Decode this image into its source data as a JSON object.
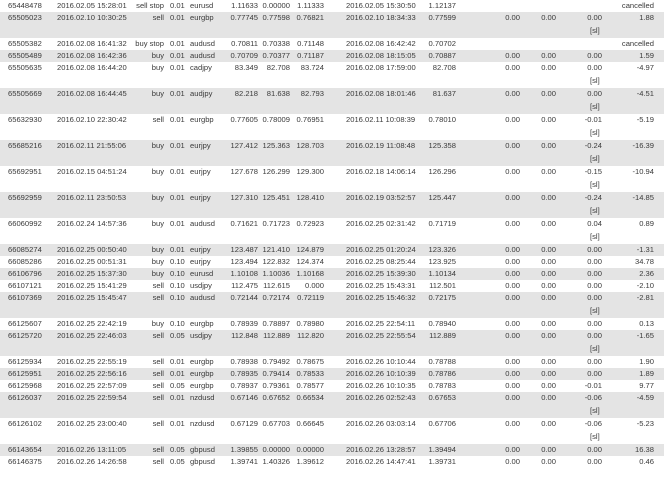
{
  "statement": {
    "colors": {
      "row_alt": "#e4e4e4",
      "row": "#ffffff",
      "text": "#3a3a3a"
    },
    "rows": [
      {
        "order": "65448478",
        "open_time": "2016.02.05 15:28:01",
        "type": "sell stop",
        "size": "0.01",
        "symbol": "eurusd",
        "price": "1.11633",
        "sl": "0.00000",
        "tp": "1.11333",
        "close_time": "2016.02.05 15:30:50",
        "close_price": "1.12137",
        "commission": "",
        "taxes": "",
        "swap": "",
        "profit": "cancelled",
        "note": ""
      },
      {
        "order": "65505023",
        "open_time": "2016.02.10 10:30:25",
        "type": "sell",
        "size": "0.01",
        "symbol": "eurgbp",
        "price": "0.77745",
        "sl": "0.77598",
        "tp": "0.76821",
        "close_time": "2016.02.10 18:34:33",
        "close_price": "0.77599",
        "commission": "0.00",
        "taxes": "0.00",
        "swap": "0.00",
        "profit": "1.88",
        "note": "[sl]"
      },
      {
        "order": "65505382",
        "open_time": "2016.02.08 16:41:32",
        "type": "buy stop",
        "size": "0.01",
        "symbol": "audusd",
        "price": "0.70811",
        "sl": "0.70338",
        "tp": "0.71148",
        "close_time": "2016.02.08 16:42:42",
        "close_price": "0.70702",
        "commission": "",
        "taxes": "",
        "swap": "",
        "profit": "cancelled",
        "note": ""
      },
      {
        "order": "65505489",
        "open_time": "2016.02.08 16:42:36",
        "type": "buy",
        "size": "0.01",
        "symbol": "audusd",
        "price": "0.70709",
        "sl": "0.70377",
        "tp": "0.71187",
        "close_time": "2016.02.08 18:15:05",
        "close_price": "0.70887",
        "commission": "0.00",
        "taxes": "0.00",
        "swap": "0.00",
        "profit": "1.59",
        "note": ""
      },
      {
        "order": "65505635",
        "open_time": "2016.02.08 16:44:20",
        "type": "buy",
        "size": "0.01",
        "symbol": "cadjpy",
        "price": "83.349",
        "sl": "82.708",
        "tp": "83.724",
        "close_time": "2016.02.08 17:59:00",
        "close_price": "82.708",
        "commission": "0.00",
        "taxes": "0.00",
        "swap": "0.00",
        "profit": "-4.97",
        "note": "[sl]"
      },
      {
        "order": "65505669",
        "open_time": "2016.02.08 16:44:45",
        "type": "buy",
        "size": "0.01",
        "symbol": "audjpy",
        "price": "82.218",
        "sl": "81.638",
        "tp": "82.793",
        "close_time": "2016.02.08 18:01:46",
        "close_price": "81.637",
        "commission": "0.00",
        "taxes": "0.00",
        "swap": "0.00",
        "profit": "-4.51",
        "note": "[sl]"
      },
      {
        "order": "65632930",
        "open_time": "2016.02.10 22:30:42",
        "type": "sell",
        "size": "0.01",
        "symbol": "eurgbp",
        "price": "0.77605",
        "sl": "0.78009",
        "tp": "0.76951",
        "close_time": "2016.02.11 10:08:39",
        "close_price": "0.78010",
        "commission": "0.00",
        "taxes": "0.00",
        "swap": "-0.01",
        "profit": "-5.19",
        "note": "[sl]"
      },
      {
        "order": "65685216",
        "open_time": "2016.02.11 21:55:06",
        "type": "buy",
        "size": "0.01",
        "symbol": "eurjpy",
        "price": "127.412",
        "sl": "125.363",
        "tp": "128.703",
        "close_time": "2016.02.19 11:08:48",
        "close_price": "125.358",
        "commission": "0.00",
        "taxes": "0.00",
        "swap": "-0.24",
        "profit": "-16.39",
        "note": "[sl]"
      },
      {
        "order": "65692951",
        "open_time": "2016.02.15 04:51:24",
        "type": "buy",
        "size": "0.01",
        "symbol": "eurjpy",
        "price": "127.678",
        "sl": "126.299",
        "tp": "129.300",
        "close_time": "2016.02.18 14:06:14",
        "close_price": "126.296",
        "commission": "0.00",
        "taxes": "0.00",
        "swap": "-0.15",
        "profit": "-10.94",
        "note": "[sl]"
      },
      {
        "order": "65692959",
        "open_time": "2016.02.11 23:50:53",
        "type": "buy",
        "size": "0.01",
        "symbol": "eurjpy",
        "price": "127.310",
        "sl": "125.451",
        "tp": "128.410",
        "close_time": "2016.02.19 03:52:57",
        "close_price": "125.447",
        "commission": "0.00",
        "taxes": "0.00",
        "swap": "-0.24",
        "profit": "-14.85",
        "note": "[sl]"
      },
      {
        "order": "66060992",
        "open_time": "2016.02.24 14:57:36",
        "type": "buy",
        "size": "0.01",
        "symbol": "audusd",
        "price": "0.71621",
        "sl": "0.71723",
        "tp": "0.72923",
        "close_time": "2016.02.25 02:31:42",
        "close_price": "0.71719",
        "commission": "0.00",
        "taxes": "0.00",
        "swap": "0.04",
        "profit": "0.89",
        "note": "[sl]"
      },
      {
        "order": "66085274",
        "open_time": "2016.02.25 00:50:40",
        "type": "buy",
        "size": "0.01",
        "symbol": "eurjpy",
        "price": "123.487",
        "sl": "121.410",
        "tp": "124.879",
        "close_time": "2016.02.25 01:20:24",
        "close_price": "123.326",
        "commission": "0.00",
        "taxes": "0.00",
        "swap": "0.00",
        "profit": "-1.31",
        "note": ""
      },
      {
        "order": "66085286",
        "open_time": "2016.02.25 00:51:31",
        "type": "buy",
        "size": "0.10",
        "symbol": "eurjpy",
        "price": "123.494",
        "sl": "122.832",
        "tp": "124.374",
        "close_time": "2016.02.25 08:25:44",
        "close_price": "123.925",
        "commission": "0.00",
        "taxes": "0.00",
        "swap": "0.00",
        "profit": "34.78",
        "note": ""
      },
      {
        "order": "66106796",
        "open_time": "2016.02.25 15:37:30",
        "type": "buy",
        "size": "0.10",
        "symbol": "eurusd",
        "price": "1.10108",
        "sl": "1.10036",
        "tp": "1.10168",
        "close_time": "2016.02.25 15:39:30",
        "close_price": "1.10134",
        "commission": "0.00",
        "taxes": "0.00",
        "swap": "0.00",
        "profit": "2.36",
        "note": ""
      },
      {
        "order": "66107121",
        "open_time": "2016.02.25 15:41:29",
        "type": "sell",
        "size": "0.10",
        "symbol": "usdjpy",
        "price": "112.475",
        "sl": "112.615",
        "tp": "0.000",
        "close_time": "2016.02.25 15:43:31",
        "close_price": "112.501",
        "commission": "0.00",
        "taxes": "0.00",
        "swap": "0.00",
        "profit": "-2.10",
        "note": ""
      },
      {
        "order": "66107369",
        "open_time": "2016.02.25 15:45:47",
        "type": "sell",
        "size": "0.10",
        "symbol": "audusd",
        "price": "0.72144",
        "sl": "0.72174",
        "tp": "0.72119",
        "close_time": "2016.02.25 15:46:32",
        "close_price": "0.72175",
        "commission": "0.00",
        "taxes": "0.00",
        "swap": "0.00",
        "profit": "-2.81",
        "note": "[sl]"
      },
      {
        "order": "66125607",
        "open_time": "2016.02.25 22:42:19",
        "type": "buy",
        "size": "0.10",
        "symbol": "eurgbp",
        "price": "0.78939",
        "sl": "0.78897",
        "tp": "0.78980",
        "close_time": "2016.02.25 22:54:11",
        "close_price": "0.78940",
        "commission": "0.00",
        "taxes": "0.00",
        "swap": "0.00",
        "profit": "0.13",
        "note": ""
      },
      {
        "order": "66125720",
        "open_time": "2016.02.25 22:46:03",
        "type": "sell",
        "size": "0.05",
        "symbol": "usdjpy",
        "price": "112.848",
        "sl": "112.889",
        "tp": "112.820",
        "close_time": "2016.02.25 22:55:54",
        "close_price": "112.889",
        "commission": "0.00",
        "taxes": "0.00",
        "swap": "0.00",
        "profit": "-1.65",
        "note": "[sl]"
      },
      {
        "order": "66125934",
        "open_time": "2016.02.25 22:55:19",
        "type": "sell",
        "size": "0.01",
        "symbol": "eurgbp",
        "price": "0.78938",
        "sl": "0.79492",
        "tp": "0.78675",
        "close_time": "2016.02.26 10:10:44",
        "close_price": "0.78788",
        "commission": "0.00",
        "taxes": "0.00",
        "swap": "0.00",
        "profit": "1.90",
        "note": ""
      },
      {
        "order": "66125951",
        "open_time": "2016.02.25 22:56:16",
        "type": "sell",
        "size": "0.01",
        "symbol": "eurgbp",
        "price": "0.78935",
        "sl": "0.79414",
        "tp": "0.78533",
        "close_time": "2016.02.26 10:10:39",
        "close_price": "0.78786",
        "commission": "0.00",
        "taxes": "0.00",
        "swap": "0.00",
        "profit": "1.89",
        "note": ""
      },
      {
        "order": "66125968",
        "open_time": "2016.02.25 22:57:09",
        "type": "sell",
        "size": "0.05",
        "symbol": "eurgbp",
        "price": "0.78937",
        "sl": "0.79361",
        "tp": "0.78577",
        "close_time": "2016.02.26 10:10:35",
        "close_price": "0.78783",
        "commission": "0.00",
        "taxes": "0.00",
        "swap": "-0.01",
        "profit": "9.77",
        "note": ""
      },
      {
        "order": "66126037",
        "open_time": "2016.02.25 22:59:54",
        "type": "sell",
        "size": "0.01",
        "symbol": "nzdusd",
        "price": "0.67146",
        "sl": "0.67652",
        "tp": "0.66534",
        "close_time": "2016.02.26 02:52:43",
        "close_price": "0.67653",
        "commission": "0.00",
        "taxes": "0.00",
        "swap": "-0.06",
        "profit": "-4.59",
        "note": "[sl]"
      },
      {
        "order": "66126102",
        "open_time": "2016.02.25 23:00:40",
        "type": "sell",
        "size": "0.01",
        "symbol": "nzdusd",
        "price": "0.67129",
        "sl": "0.67703",
        "tp": "0.66645",
        "close_time": "2016.02.26 03:03:14",
        "close_price": "0.67706",
        "commission": "0.00",
        "taxes": "0.00",
        "swap": "-0.06",
        "profit": "-5.23",
        "note": "[sl]"
      },
      {
        "order": "66143654",
        "open_time": "2016.02.26 13:11:05",
        "type": "sell",
        "size": "0.05",
        "symbol": "gbpusd",
        "price": "1.39855",
        "sl": "0.00000",
        "tp": "0.00000",
        "close_time": "2016.02.26 13:28:57",
        "close_price": "1.39494",
        "commission": "0.00",
        "taxes": "0.00",
        "swap": "0.00",
        "profit": "16.38",
        "note": ""
      },
      {
        "order": "66146375",
        "open_time": "2016.02.26 14:26:58",
        "type": "sell",
        "size": "0.05",
        "symbol": "gbpusd",
        "price": "1.39741",
        "sl": "1.40326",
        "tp": "1.39612",
        "close_time": "2016.02.26 14:47:41",
        "close_price": "1.39731",
        "commission": "0.00",
        "taxes": "0.00",
        "swap": "0.00",
        "profit": "0.46",
        "note": ""
      }
    ]
  }
}
